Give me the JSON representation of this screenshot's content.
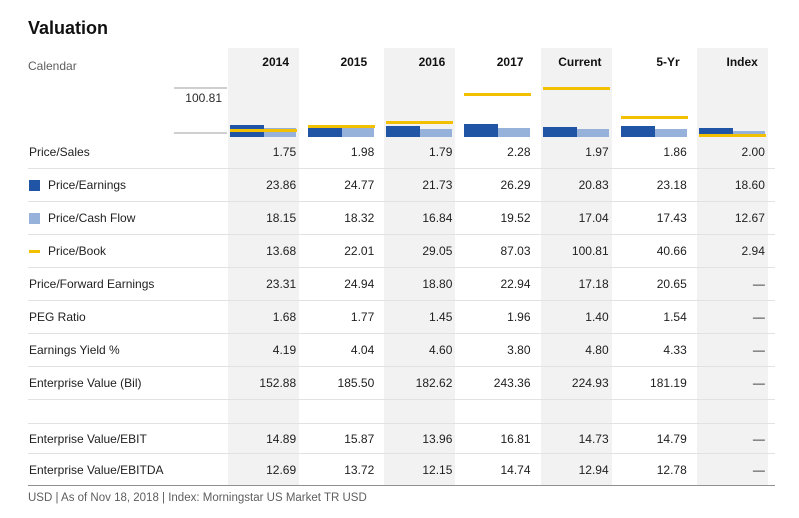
{
  "title": "Valuation",
  "header": {
    "label": "Calendar",
    "columns": [
      "2014",
      "2015",
      "2016",
      "2017",
      "Current",
      "5-Yr",
      "Index"
    ]
  },
  "chart_data": {
    "type": "bar",
    "categories": [
      "2014",
      "2015",
      "2016",
      "2017",
      "Current",
      "5-Yr",
      "Index"
    ],
    "series": [
      {
        "name": "Price/Earnings",
        "style": "bar",
        "color": "#1f55a4",
        "values": [
          23.86,
          24.77,
          21.73,
          26.29,
          20.83,
          23.18,
          18.6
        ]
      },
      {
        "name": "Price/Cash Flow",
        "style": "bar",
        "color": "#96b2da",
        "values": [
          18.15,
          18.32,
          16.84,
          19.52,
          17.04,
          17.43,
          12.67
        ]
      },
      {
        "name": "Price/Book",
        "style": "line",
        "color": "#f3c000",
        "values": [
          13.68,
          22.01,
          29.05,
          87.03,
          100.81,
          40.66,
          2.94
        ]
      }
    ],
    "title": "Valuation",
    "xlabel": "",
    "ylabel": "",
    "ylim": [
      0,
      100.81
    ],
    "ymax_label": "100.81",
    "grid": false,
    "legend_position": "row-labels-left"
  },
  "rows": [
    {
      "label": "Price/Sales",
      "marker": null,
      "values": [
        "1.75",
        "1.98",
        "1.79",
        "2.28",
        "1.97",
        "1.86",
        "2.00"
      ]
    },
    {
      "label": "Price/Earnings",
      "marker": "pe",
      "values": [
        "23.86",
        "24.77",
        "21.73",
        "26.29",
        "20.83",
        "23.18",
        "18.60"
      ]
    },
    {
      "label": "Price/Cash Flow",
      "marker": "pcf",
      "values": [
        "18.15",
        "18.32",
        "16.84",
        "19.52",
        "17.04",
        "17.43",
        "12.67"
      ]
    },
    {
      "label": "Price/Book",
      "marker": "pb",
      "values": [
        "13.68",
        "22.01",
        "29.05",
        "87.03",
        "100.81",
        "40.66",
        "2.94"
      ]
    },
    {
      "label": "Price/Forward Earnings",
      "marker": null,
      "values": [
        "23.31",
        "24.94",
        "18.80",
        "22.94",
        "17.18",
        "20.65",
        "—"
      ]
    },
    {
      "label": "PEG Ratio",
      "marker": null,
      "values": [
        "1.68",
        "1.77",
        "1.45",
        "1.96",
        "1.40",
        "1.54",
        "—"
      ]
    },
    {
      "label": "Earnings Yield %",
      "marker": null,
      "values": [
        "4.19",
        "4.04",
        "4.60",
        "3.80",
        "4.80",
        "4.33",
        "—"
      ]
    },
    {
      "label": "Enterprise Value (Bil)",
      "marker": null,
      "values": [
        "152.88",
        "185.50",
        "182.62",
        "243.36",
        "224.93",
        "181.19",
        "—"
      ]
    },
    {
      "label": "",
      "spacer": true,
      "values": []
    },
    {
      "label": "Enterprise Value/EBIT",
      "marker": null,
      "values": [
        "14.89",
        "15.87",
        "13.96",
        "16.81",
        "14.73",
        "14.79",
        "—"
      ]
    },
    {
      "label": "Enterprise Value/EBITDA",
      "marker": null,
      "values": [
        "12.69",
        "13.72",
        "12.15",
        "14.74",
        "12.94",
        "12.78",
        "—"
      ]
    }
  ],
  "footer": {
    "text": "USD | As of Nov 18, 2018 | Index: Morningstar US Market TR USD"
  },
  "colors": {
    "pe_bar": "#1f55a4",
    "pcf_bar": "#96b2da",
    "pb_line": "#f3c000",
    "band_gray": "#f2f2f2",
    "row_border": "#e2e2e2",
    "strong_border": "#909090",
    "muted_text": "#5e5e5e"
  }
}
